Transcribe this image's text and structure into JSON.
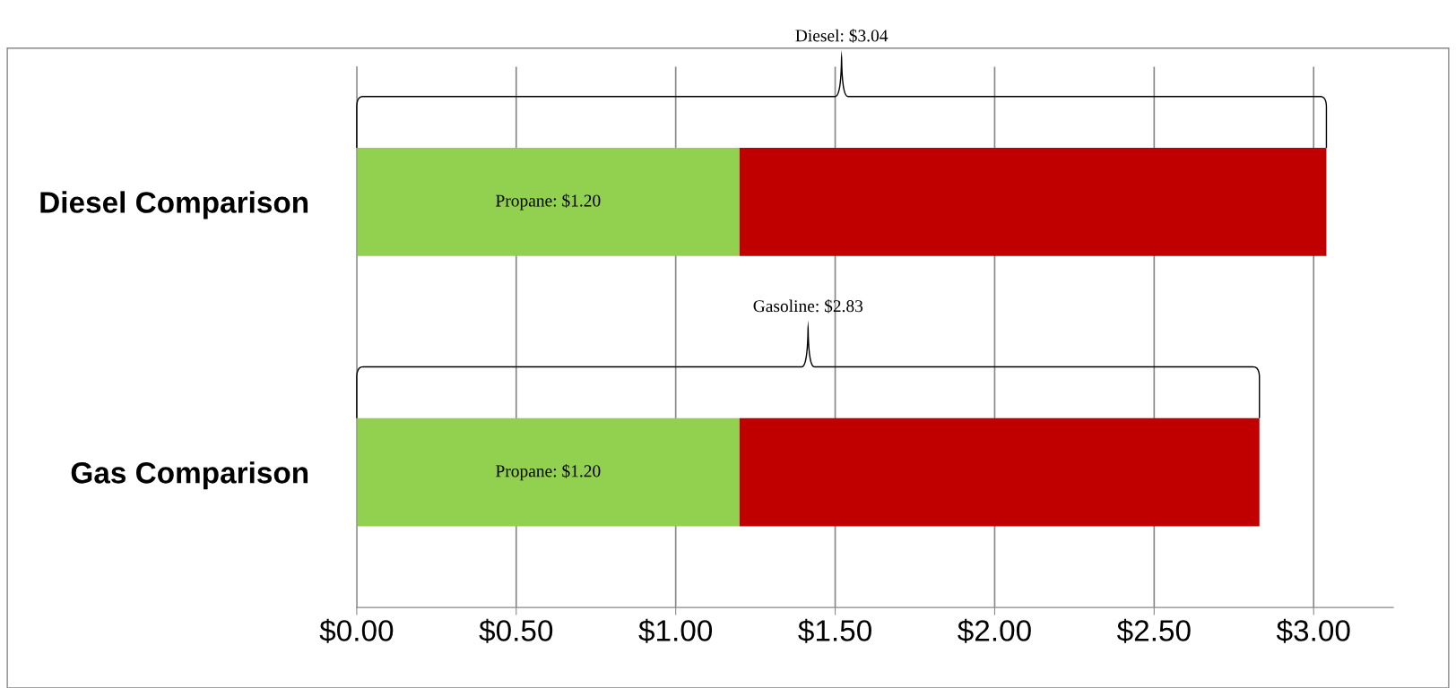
{
  "chart_data": {
    "type": "bar",
    "orientation": "horizontal",
    "stacked": true,
    "categories": [
      "Diesel Comparison",
      "Gas Comparison"
    ],
    "series": [
      {
        "color": "#92d050",
        "values": [
          1.2,
          1.2
        ]
      },
      {
        "color": "#c00000",
        "values": [
          1.84,
          1.63
        ]
      }
    ],
    "xlim": [
      0,
      3.25
    ],
    "xticks": [
      {
        "value": 0,
        "label": "$0.00"
      },
      {
        "value": 0.5,
        "label": "$0.50"
      },
      {
        "value": 1,
        "label": "$1.00"
      },
      {
        "value": 1.5,
        "label": "$1.50"
      },
      {
        "value": 2,
        "label": "$2.00"
      },
      {
        "value": 2.5,
        "label": "$2.50"
      },
      {
        "value": 3,
        "label": "$3.00"
      }
    ],
    "grid": "x",
    "annotations": [
      "Diesel: $3.04",
      "Propane: $1.20",
      "Gasoline: $2.83",
      "Propane: $1.20"
    ]
  }
}
